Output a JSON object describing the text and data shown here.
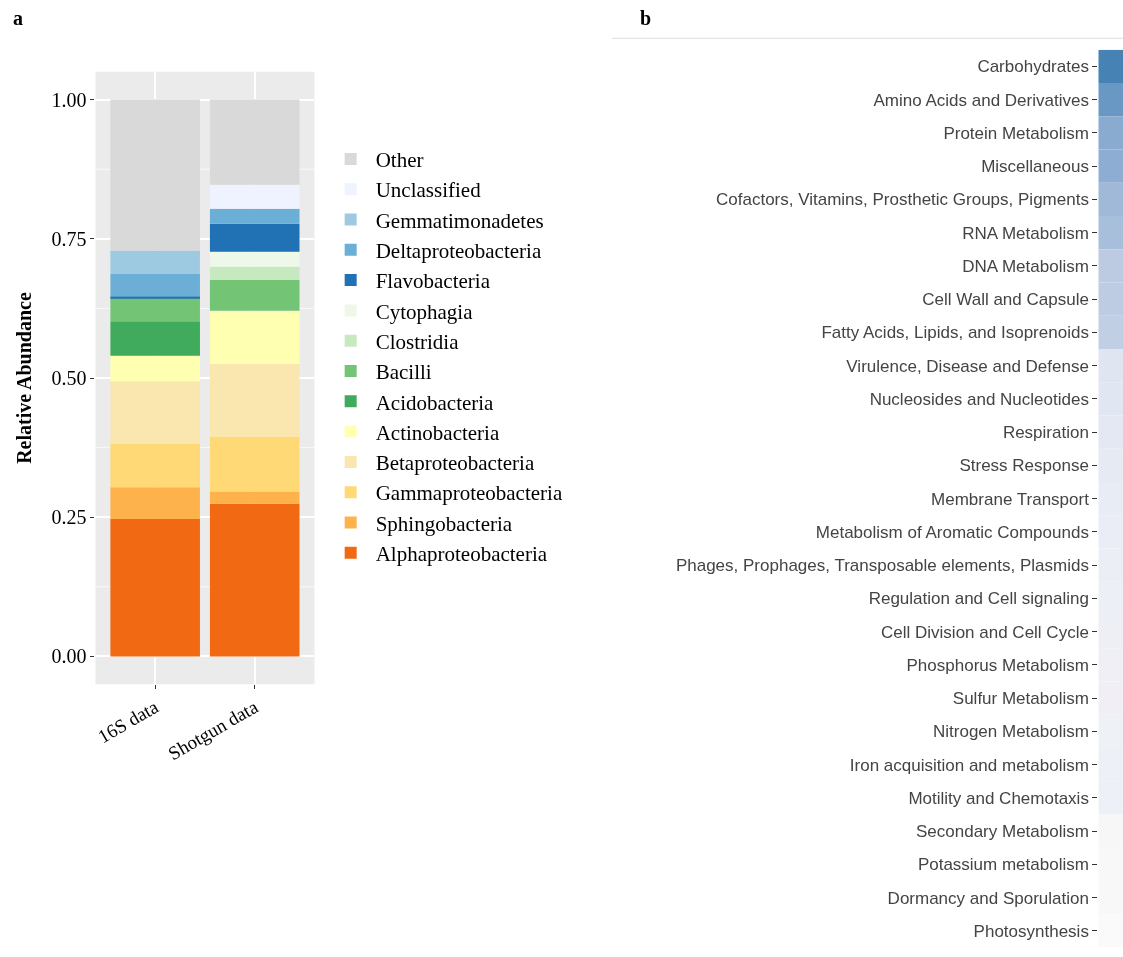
{
  "chart_data": [
    {
      "type": "bar",
      "title": "a",
      "ylabel": "Relative Abundance",
      "categories": [
        "16S data",
        "Shotgun data"
      ],
      "stacked": true,
      "ylim": [
        -0.05,
        1.05
      ],
      "yticks": [
        {
          "value": 0,
          "label": "0.00"
        },
        {
          "value": 0.25,
          "label": "0.25"
        },
        {
          "value": 0.5,
          "label": "0.50"
        },
        {
          "value": 0.75,
          "label": "0.75"
        },
        {
          "value": 1,
          "label": "1.00"
        }
      ],
      "grid": true,
      "legend": "right",
      "series": [
        {
          "name": "Alphaproteobacteria",
          "color": "#f16913",
          "values": [
            0.247,
            0.274
          ]
        },
        {
          "name": "Sphingobacteria",
          "color": "#feb24c",
          "values": [
            0.057,
            0.022
          ]
        },
        {
          "name": "Gammaproteobacteria",
          "color": "#fed976",
          "values": [
            0.078,
            0.098
          ]
        },
        {
          "name": "Betaproteobacteria",
          "color": "#fae7b0",
          "values": [
            0.112,
            0.131
          ]
        },
        {
          "name": "Actinobacteria",
          "color": "#ffffb2",
          "values": [
            0.046,
            0.096
          ]
        },
        {
          "name": "Acidobacteria",
          "color": "#41ab5d",
          "values": [
            0.062,
            0
          ]
        },
        {
          "name": "Bacilli",
          "color": "#74c476",
          "values": [
            0.042,
            0.055
          ]
        },
        {
          "name": "Clostridia",
          "color": "#c7e9c0",
          "values": [
            0,
            0.024
          ]
        },
        {
          "name": "Cytophagia",
          "color": "#edf8e9",
          "values": [
            0,
            0.027
          ]
        },
        {
          "name": "Flavobacteria",
          "color": "#2171b5",
          "values": [
            0.003,
            0.05
          ]
        },
        {
          "name": "Deltaproteobacteria",
          "color": "#6baed6",
          "values": [
            0.04,
            0.027
          ]
        },
        {
          "name": "Gemmatimonadetes",
          "color": "#9ecae1",
          "values": [
            0.042,
            0
          ]
        },
        {
          "name": "Unclassified",
          "color": "#eff3ff",
          "values": [
            0,
            0.043
          ]
        },
        {
          "name": "Other",
          "color": "#d9d9d9",
          "values": [
            0.271,
            0.153
          ]
        }
      ]
    },
    {
      "type": "other",
      "title": "b",
      "categories": [
        "Carbohydrates",
        "Amino Acids and Derivatives",
        "Protein Metabolism",
        "Miscellaneous",
        "Cofactors, Vitamins, Prosthetic Groups, Pigments",
        "RNA Metabolism",
        "DNA Metabolism",
        "Cell Wall and Capsule",
        "Fatty Acids, Lipids, and Isoprenoids",
        "Virulence, Disease and Defense",
        "Nucleosides and Nucleotides",
        "Respiration",
        "Stress Response",
        "Membrane Transport",
        "Metabolism of Aromatic Compounds",
        "Phages, Prophages, Transposable elements, Plasmids",
        "Regulation and Cell signaling",
        "Cell Division and Cell Cycle",
        "Phosphorus Metabolism",
        "Sulfur Metabolism",
        "Nitrogen Metabolism",
        "Iron acquisition and metabolism",
        "Motility and Chemotaxis",
        "Secondary Metabolism",
        "Potassium metabolism",
        "Dormancy and Sporulation",
        "Photosynthesis"
      ],
      "colors": [
        "#4682b4",
        "#6a98c4",
        "#8aabd0",
        "#8eadd2",
        "#a0b9d8",
        "#a8bfdb",
        "#bccbe2",
        "#bdcce3",
        "#c0cfe4",
        "#dfe5f1",
        "#e0e6f2",
        "#e3e8f2",
        "#e6eaf3",
        "#e8ecf4",
        "#eaedf5",
        "#ebeef5",
        "#eceff6",
        "#eeeff5",
        "#f0eff5",
        "#f1eff5",
        "#eef1f5",
        "#edf0f6",
        "#edf0f7",
        "#f7f7f7",
        "#f8f8f8",
        "#f8f8f8",
        "#fafafa"
      ]
    }
  ]
}
